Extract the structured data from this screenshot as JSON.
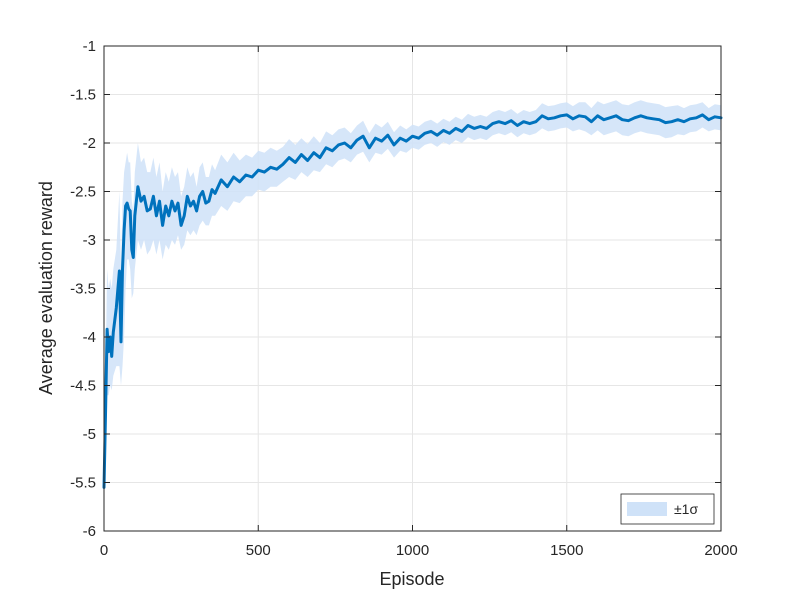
{
  "chart_data": {
    "type": "line",
    "title": "",
    "xlabel": "Episode",
    "ylabel": "Average evaluation reward",
    "xlim": [
      0,
      2000
    ],
    "ylim": [
      -6,
      -1
    ],
    "x_ticks": [
      0,
      500,
      1000,
      1500,
      2000
    ],
    "x_tick_labels": [
      "0",
      "500",
      "1000",
      "1500",
      "2000"
    ],
    "y_ticks": [
      -6,
      -5.5,
      -5,
      -4.5,
      -4,
      -3.5,
      -3,
      -2.5,
      -2,
      -1.5,
      -1
    ],
    "y_tick_labels": [
      "-6",
      "-5.5",
      "-5",
      "-4.5",
      "-4",
      "-3.5",
      "-3",
      "-2.5",
      "-2",
      "-1.5",
      "-1"
    ],
    "grid": true,
    "legend_placement": "bottom-right",
    "legend": [
      {
        "label": "±1σ",
        "kind": "band"
      }
    ],
    "colors": {
      "line": "#0072bd",
      "band": "#cfe2f8",
      "grid": "#e6e6e6",
      "axis": "#262626"
    },
    "series": [
      {
        "name": "",
        "x": [
          0,
          5,
          10,
          15,
          20,
          25,
          30,
          40,
          50,
          55,
          60,
          65,
          70,
          75,
          80,
          85,
          90,
          95,
          100,
          110,
          120,
          130,
          140,
          150,
          160,
          170,
          180,
          190,
          200,
          210,
          220,
          230,
          240,
          250,
          260,
          270,
          280,
          290,
          300,
          310,
          320,
          330,
          340,
          350,
          360,
          380,
          400,
          420,
          440,
          460,
          480,
          500,
          520,
          540,
          560,
          580,
          600,
          620,
          640,
          660,
          680,
          700,
          720,
          740,
          760,
          780,
          800,
          820,
          840,
          860,
          880,
          900,
          920,
          940,
          960,
          980,
          1000,
          1020,
          1040,
          1060,
          1080,
          1100,
          1120,
          1140,
          1160,
          1180,
          1200,
          1220,
          1240,
          1260,
          1280,
          1300,
          1320,
          1340,
          1360,
          1380,
          1400,
          1420,
          1440,
          1460,
          1480,
          1500,
          1520,
          1540,
          1560,
          1580,
          1600,
          1620,
          1640,
          1660,
          1680,
          1700,
          1720,
          1740,
          1760,
          1780,
          1800,
          1820,
          1840,
          1860,
          1880,
          1900,
          1920,
          1940,
          1960,
          1980,
          2000
        ],
        "y": [
          -5.55,
          -4.8,
          -3.92,
          -4.15,
          -4.0,
          -4.2,
          -3.95,
          -3.7,
          -3.32,
          -4.05,
          -3.3,
          -2.9,
          -2.65,
          -2.62,
          -2.68,
          -2.7,
          -3.1,
          -3.18,
          -2.75,
          -2.45,
          -2.6,
          -2.55,
          -2.7,
          -2.68,
          -2.55,
          -2.75,
          -2.6,
          -2.85,
          -2.65,
          -2.75,
          -2.6,
          -2.7,
          -2.62,
          -2.85,
          -2.75,
          -2.55,
          -2.65,
          -2.6,
          -2.7,
          -2.55,
          -2.5,
          -2.62,
          -2.6,
          -2.48,
          -2.52,
          -2.38,
          -2.45,
          -2.35,
          -2.4,
          -2.33,
          -2.35,
          -2.28,
          -2.3,
          -2.25,
          -2.27,
          -2.22,
          -2.15,
          -2.2,
          -2.12,
          -2.18,
          -2.1,
          -2.15,
          -2.05,
          -2.08,
          -2.02,
          -2.0,
          -2.05,
          -1.97,
          -1.93,
          -2.05,
          -1.95,
          -1.98,
          -1.92,
          -2.02,
          -1.95,
          -1.98,
          -1.93,
          -1.95,
          -1.9,
          -1.88,
          -1.92,
          -1.87,
          -1.9,
          -1.85,
          -1.88,
          -1.82,
          -1.85,
          -1.83,
          -1.85,
          -1.8,
          -1.78,
          -1.8,
          -1.77,
          -1.82,
          -1.78,
          -1.8,
          -1.78,
          -1.72,
          -1.75,
          -1.74,
          -1.72,
          -1.71,
          -1.75,
          -1.72,
          -1.73,
          -1.78,
          -1.72,
          -1.76,
          -1.74,
          -1.72,
          -1.76,
          -1.77,
          -1.74,
          -1.72,
          -1.74,
          -1.75,
          -1.76,
          -1.79,
          -1.78,
          -1.76,
          -1.78,
          -1.75,
          -1.74,
          -1.71,
          -1.76,
          -1.73,
          -1.74
        ],
        "band_low": [
          -5.6,
          -5.2,
          -4.6,
          -4.6,
          -4.5,
          -4.55,
          -4.4,
          -4.3,
          -4.3,
          -4.5,
          -4.3,
          -4.0,
          -3.5,
          -3.2,
          -3.2,
          -3.3,
          -3.6,
          -3.55,
          -3.3,
          -3.0,
          -3.1,
          -3.0,
          -3.15,
          -3.1,
          -3.0,
          -3.15,
          -3.0,
          -3.2,
          -3.05,
          -3.1,
          -3.0,
          -3.05,
          -2.95,
          -3.1,
          -3.05,
          -2.9,
          -2.95,
          -2.9,
          -2.95,
          -2.85,
          -2.8,
          -2.85,
          -2.85,
          -2.75,
          -2.75,
          -2.65,
          -2.7,
          -2.6,
          -2.62,
          -2.55,
          -2.55,
          -2.48,
          -2.5,
          -2.45,
          -2.45,
          -2.4,
          -2.35,
          -2.38,
          -2.3,
          -2.35,
          -2.28,
          -2.3,
          -2.22,
          -2.25,
          -2.18,
          -2.16,
          -2.2,
          -2.12,
          -2.09,
          -2.2,
          -2.1,
          -2.12,
          -2.06,
          -2.15,
          -2.08,
          -2.1,
          -2.05,
          -2.07,
          -2.02,
          -2.0,
          -2.04,
          -1.99,
          -2.02,
          -1.97,
          -2.0,
          -1.94,
          -1.97,
          -1.95,
          -1.97,
          -1.92,
          -1.9,
          -1.92,
          -1.89,
          -1.94,
          -1.9,
          -1.92,
          -1.9,
          -1.85,
          -1.88,
          -1.87,
          -1.85,
          -1.84,
          -1.88,
          -1.86,
          -1.88,
          -1.92,
          -1.87,
          -1.92,
          -1.9,
          -1.88,
          -1.92,
          -1.93,
          -1.9,
          -1.88,
          -1.9,
          -1.91,
          -1.92,
          -1.95,
          -1.94,
          -1.91,
          -1.92,
          -1.89,
          -1.88,
          -1.84,
          -1.88,
          -1.86,
          -1.87
        ],
        "band_high": [
          -5.5,
          -4.4,
          -3.3,
          -3.5,
          -3.4,
          -3.5,
          -3.3,
          -3.1,
          -2.5,
          -3.3,
          -2.6,
          -2.3,
          -2.2,
          -2.1,
          -2.2,
          -2.2,
          -2.6,
          -2.7,
          -2.3,
          -2.0,
          -2.2,
          -2.15,
          -2.3,
          -2.3,
          -2.15,
          -2.35,
          -2.2,
          -2.5,
          -2.3,
          -2.4,
          -2.25,
          -2.35,
          -2.3,
          -2.55,
          -2.45,
          -2.25,
          -2.35,
          -2.3,
          -2.45,
          -2.25,
          -2.2,
          -2.35,
          -2.35,
          -2.22,
          -2.28,
          -2.12,
          -2.2,
          -2.1,
          -2.18,
          -2.12,
          -2.15,
          -2.08,
          -2.1,
          -2.05,
          -2.08,
          -2.04,
          -1.96,
          -2.02,
          -1.95,
          -2.01,
          -1.93,
          -2.0,
          -1.88,
          -1.92,
          -1.86,
          -1.84,
          -1.9,
          -1.82,
          -1.77,
          -1.9,
          -1.8,
          -1.84,
          -1.78,
          -1.89,
          -1.82,
          -1.86,
          -1.81,
          -1.83,
          -1.78,
          -1.76,
          -1.8,
          -1.75,
          -1.78,
          -1.73,
          -1.76,
          -1.7,
          -1.73,
          -1.71,
          -1.73,
          -1.68,
          -1.66,
          -1.68,
          -1.65,
          -1.7,
          -1.66,
          -1.68,
          -1.66,
          -1.59,
          -1.62,
          -1.61,
          -1.59,
          -1.58,
          -1.62,
          -1.58,
          -1.58,
          -1.64,
          -1.57,
          -1.6,
          -1.58,
          -1.56,
          -1.6,
          -1.61,
          -1.58,
          -1.56,
          -1.58,
          -1.59,
          -1.6,
          -1.63,
          -1.62,
          -1.61,
          -1.64,
          -1.61,
          -1.6,
          -1.58,
          -1.64,
          -1.6,
          -1.61
        ]
      }
    ]
  }
}
